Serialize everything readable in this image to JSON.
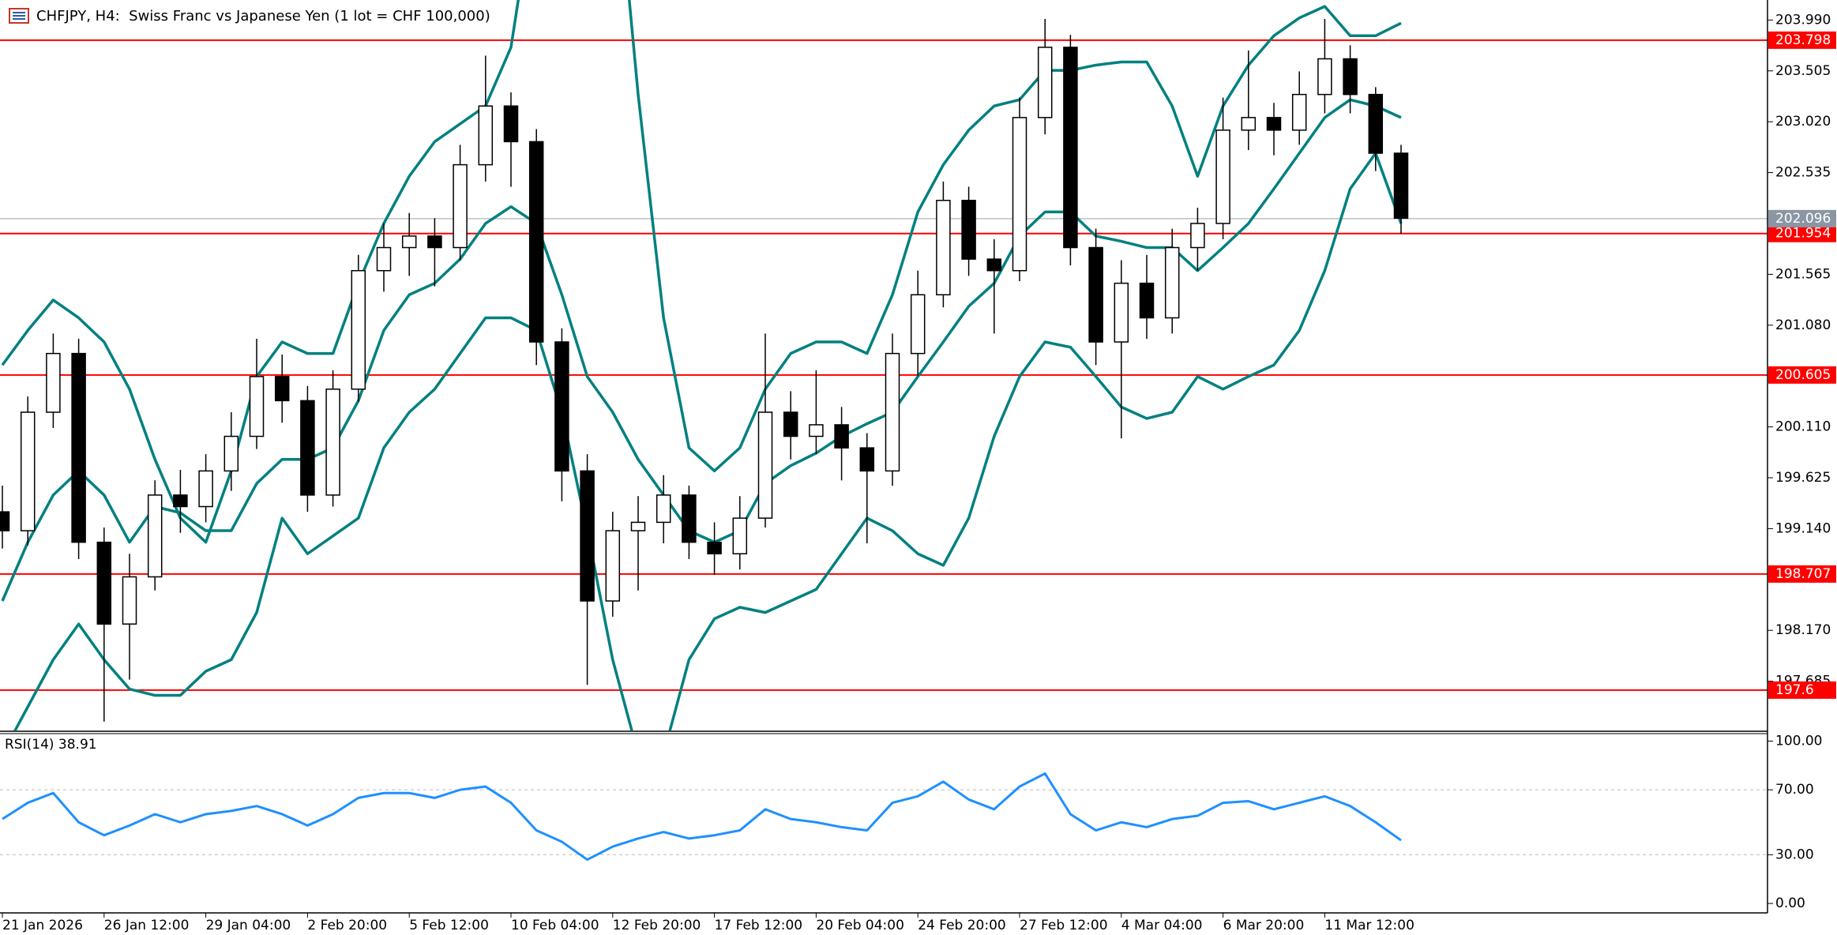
{
  "chart_data": [
    {
      "type": "candlestick",
      "title": "CHFJPY, H4:  Swiss Franc vs Japanese Yen (1 lot = CHF 100,000)",
      "categories": [
        "21 Jan 2026",
        null,
        null,
        null,
        "26 Jan 12:00",
        null,
        null,
        null,
        "29 Jan 04:00",
        null,
        null,
        null,
        "2 Feb 20:00",
        null,
        null,
        null,
        "5 Feb 12:00",
        null,
        null,
        null,
        "10 Feb 04:00",
        null,
        null,
        null,
        "12 Feb 20:00",
        null,
        null,
        null,
        "17 Feb 12:00",
        null,
        null,
        null,
        "20 Feb 04:00",
        null,
        null,
        null,
        "24 Feb 20:00",
        null,
        null,
        null,
        "27 Feb 12:00",
        null,
        null,
        null,
        "4 Mar 04:00",
        null,
        null,
        null,
        "6 Mar 20:00",
        null,
        null,
        null,
        "11 Mar 12:00",
        null,
        null,
        null
      ],
      "open": [
        199.3,
        199.12,
        200.25,
        200.81,
        199.01,
        198.23,
        198.68,
        199.46,
        199.35,
        199.69,
        200.02,
        200.59,
        200.36,
        199.46,
        200.47,
        201.6,
        201.82,
        201.93,
        201.82,
        202.61,
        203.17,
        202.83,
        200.92,
        199.69,
        198.45,
        199.12,
        199.2,
        199.46,
        199.01,
        198.9,
        199.24,
        200.25,
        200.02,
        200.13,
        199.91,
        199.69,
        200.81,
        201.37,
        202.27,
        201.71,
        201.6,
        203.06,
        203.73,
        201.82,
        200.92,
        201.48,
        201.15,
        201.82,
        202.05,
        202.94,
        203.06,
        202.94,
        203.28,
        203.62,
        203.28,
        202.72
      ],
      "high": [
        199.55,
        200.4,
        201.0,
        200.95,
        199.15,
        198.9,
        199.6,
        199.7,
        199.85,
        200.25,
        200.95,
        200.8,
        200.5,
        200.65,
        201.75,
        202.05,
        202.15,
        202.1,
        202.8,
        203.65,
        203.3,
        202.95,
        201.05,
        199.85,
        199.3,
        199.45,
        199.65,
        199.55,
        199.2,
        199.45,
        201.0,
        200.45,
        200.65,
        200.3,
        200.05,
        201.0,
        201.6,
        202.45,
        202.4,
        201.9,
        203.25,
        204.0,
        203.85,
        202.0,
        201.7,
        201.75,
        202.0,
        202.2,
        203.25,
        203.7,
        203.2,
        203.5,
        204.0,
        203.75,
        203.35,
        202.8
      ],
      "low": [
        198.95,
        198.98,
        200.1,
        198.85,
        197.3,
        197.7,
        198.55,
        199.1,
        199.2,
        199.5,
        199.9,
        200.15,
        199.3,
        199.35,
        200.35,
        201.4,
        201.55,
        201.45,
        201.7,
        202.45,
        202.4,
        200.7,
        199.4,
        197.65,
        198.3,
        198.55,
        199.0,
        198.85,
        198.7,
        198.75,
        199.15,
        199.8,
        199.85,
        199.6,
        199.0,
        199.55,
        200.6,
        201.25,
        201.55,
        201.0,
        201.5,
        202.9,
        201.65,
        200.7,
        200.0,
        200.95,
        201.0,
        201.6,
        201.9,
        202.75,
        202.7,
        202.8,
        203.1,
        203.1,
        202.55,
        201.95
      ],
      "close": [
        199.12,
        200.25,
        200.81,
        199.01,
        198.23,
        198.68,
        199.46,
        199.35,
        199.69,
        200.02,
        200.59,
        200.36,
        199.46,
        200.47,
        201.6,
        201.82,
        201.93,
        201.82,
        202.61,
        203.17,
        202.83,
        200.92,
        199.69,
        198.45,
        199.12,
        199.2,
        199.46,
        199.01,
        198.9,
        199.24,
        200.25,
        200.02,
        200.13,
        199.91,
        199.69,
        200.81,
        201.37,
        202.27,
        201.71,
        201.6,
        203.06,
        203.73,
        201.82,
        200.92,
        201.48,
        201.15,
        201.82,
        202.05,
        202.94,
        203.06,
        202.94,
        203.28,
        203.62,
        203.28,
        202.72,
        202.1
      ],
      "up_color": "#ffffff",
      "down_color": "#000000",
      "outline_color": "#000000",
      "bands": {
        "color": "#008080",
        "upper": [
          200.7,
          201.03,
          201.32,
          201.15,
          200.92,
          200.47,
          199.8,
          199.24,
          199.01,
          199.69,
          200.59,
          200.92,
          200.81,
          200.81,
          201.48,
          202.05,
          202.5,
          202.83,
          203.0,
          203.17,
          203.73,
          205.3,
          206.43,
          206.99,
          205.87,
          203.28,
          201.15,
          199.91,
          199.69,
          199.91,
          200.47,
          200.81,
          200.92,
          200.92,
          200.81,
          201.37,
          202.16,
          202.61,
          202.94,
          203.17,
          203.23,
          203.51,
          203.51,
          203.56,
          203.59,
          203.59,
          203.17,
          202.5,
          203.17,
          203.56,
          203.84,
          204.01,
          204.12,
          203.84,
          203.84,
          203.96
        ],
        "middle": [
          198.45,
          199.01,
          199.46,
          199.69,
          199.46,
          199.01,
          199.35,
          199.29,
          199.12,
          199.12,
          199.57,
          199.8,
          199.8,
          199.91,
          200.36,
          201.03,
          201.37,
          201.48,
          201.71,
          202.05,
          202.21,
          202.05,
          201.37,
          200.59,
          200.25,
          199.8,
          199.46,
          199.12,
          199.01,
          199.12,
          199.57,
          199.74,
          199.86,
          200.02,
          200.14,
          200.25,
          200.59,
          200.92,
          201.26,
          201.48,
          201.93,
          202.16,
          202.16,
          201.93,
          201.88,
          201.82,
          201.82,
          201.6,
          201.82,
          202.05,
          202.38,
          202.72,
          203.06,
          203.23,
          203.17,
          203.06
        ],
        "lower": [
          196.99,
          197.44,
          197.89,
          198.23,
          197.89,
          197.61,
          197.55,
          197.55,
          197.78,
          197.89,
          198.34,
          199.24,
          198.9,
          199.07,
          199.24,
          199.91,
          200.25,
          200.47,
          200.81,
          201.15,
          201.15,
          201.03,
          200.25,
          199.12,
          197.89,
          196.99,
          196.99,
          197.89,
          198.28,
          198.39,
          198.34,
          198.45,
          198.56,
          198.9,
          199.24,
          199.12,
          198.9,
          198.79,
          199.24,
          200.02,
          200.59,
          200.92,
          200.87,
          200.59,
          200.3,
          200.19,
          200.25,
          200.59,
          200.47,
          200.59,
          200.7,
          201.03,
          201.6,
          202.38,
          202.72,
          202.05
        ]
      },
      "ylim": [
        197.215,
        204.181
      ],
      "yticks": [
        {
          "value": 203.99,
          "label": "203.990"
        },
        203.505,
        {
          "value": 203.02,
          "label": "203.020"
        },
        202.535,
        201.565,
        {
          "value": 201.08,
          "label": "201.080"
        },
        {
          "value": 200.11,
          "label": "200.110"
        },
        199.625,
        {
          "value": 199.14,
          "label": "199.140"
        },
        {
          "value": 198.17,
          "label": "198.170"
        },
        197.685
      ],
      "hlines": [
        203.798,
        201.954,
        200.605,
        198.707,
        197.6
      ],
      "hline_color": "#ff0000",
      "last_price": 202.096,
      "last_price_color": "#8a96a3"
    },
    {
      "type": "line",
      "title": "RSI(14) 38.91",
      "values": [
        52,
        62,
        68,
        50,
        42,
        48,
        55,
        50,
        55,
        57,
        60,
        55,
        48,
        55,
        65,
        68,
        68,
        65,
        70,
        72,
        62,
        45,
        38,
        27,
        35,
        40,
        44,
        40,
        42,
        45,
        58,
        52,
        50,
        47,
        45,
        62,
        66,
        75,
        64,
        58,
        72,
        80,
        55,
        45,
        50,
        47,
        52,
        54,
        62,
        63,
        58,
        62,
        66,
        60,
        50,
        38.91
      ],
      "color": "#1e90ff",
      "ylim": [
        -5.8,
        105.07
      ],
      "yticks": [
        {
          "value": 100,
          "label": "100.00"
        },
        {
          "value": 70,
          "label": "70.00"
        },
        {
          "value": 30,
          "label": "30.00"
        },
        {
          "value": 0,
          "label": "0.00"
        }
      ],
      "level_lines": [
        70,
        30
      ]
    }
  ]
}
